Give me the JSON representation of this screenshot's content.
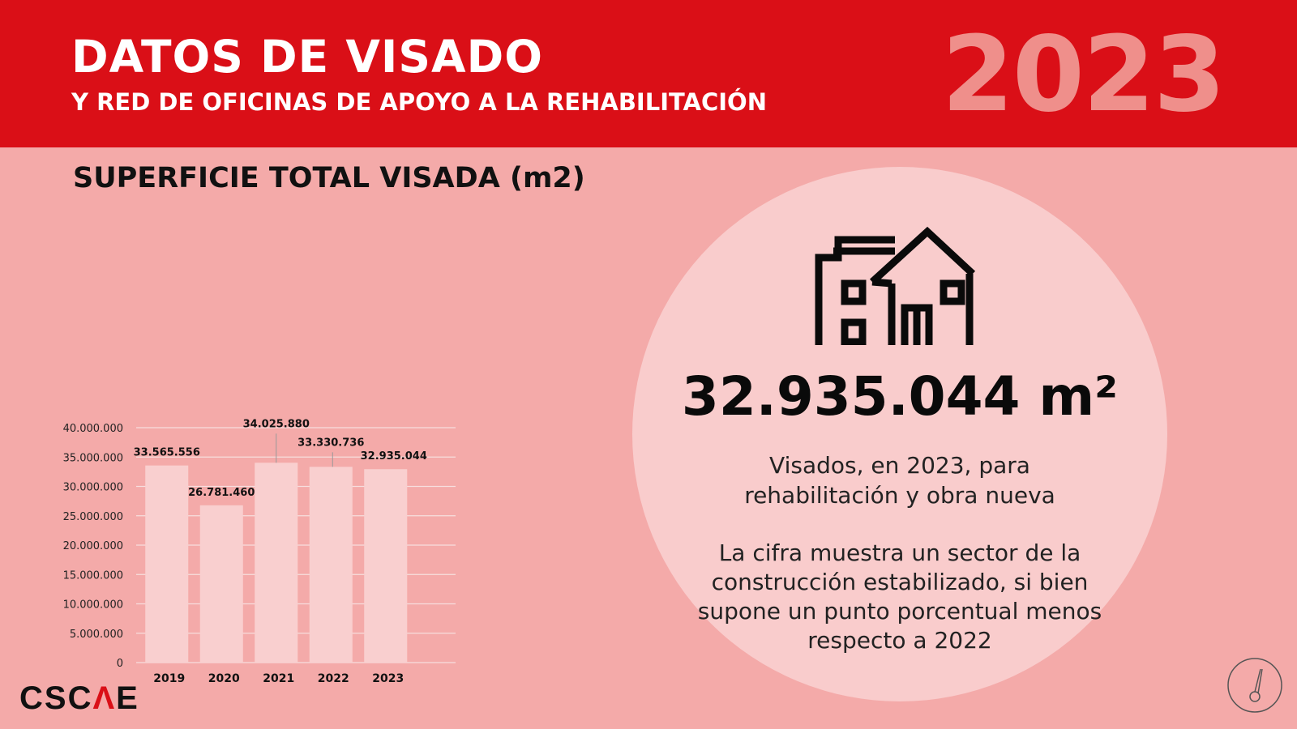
{
  "header": {
    "title": "DATOS DE VISADO",
    "subtitle": "Y RED DE OFICINAS DE APOYO A LA REHABILITACIÓN",
    "year": "2023"
  },
  "section_title": "SUPERFICIE TOTAL VISADA (m2)",
  "highlight": {
    "value": "32.935.044 m²",
    "description_1": "Visados, en 2023, para rehabilitación y obra nueva",
    "description_2": "La cifra muestra un sector de la construcción estabilizado, si bien supone un punto porcentual menos respecto a 2022",
    "icon": "house-building-icon"
  },
  "logo": {
    "prefix": "CSC",
    "accent": "Λ",
    "suffix": "E"
  },
  "badge_icon": "compass-icon",
  "colors": {
    "banner": "#da0f17",
    "background": "#f4aaa9",
    "bar": "#f9cfcf",
    "circle": "#f9cccc",
    "year": "#ef8f8b"
  },
  "chart_data": {
    "type": "bar",
    "title": "",
    "categories": [
      "2019",
      "2020",
      "2021",
      "2022",
      "2023"
    ],
    "values": [
      33565556,
      26781460,
      34025880,
      33330736,
      32935044
    ],
    "data_labels": [
      "33.565.556",
      "26.781.460",
      "34.025.880",
      "33.330.736",
      "32.935.044"
    ],
    "ylim": [
      0,
      40000000
    ],
    "yticks": [
      0,
      5000000,
      10000000,
      15000000,
      20000000,
      25000000,
      30000000,
      35000000,
      40000000
    ],
    "ytick_labels": [
      "0",
      "5.000.000",
      "10.000.000",
      "15.000.000",
      "20.000.000",
      "25.000.000",
      "30.000.000",
      "35.000.000",
      "40.000.000"
    ],
    "xlabel": "",
    "ylabel": "",
    "grid": true,
    "legend": "none"
  }
}
